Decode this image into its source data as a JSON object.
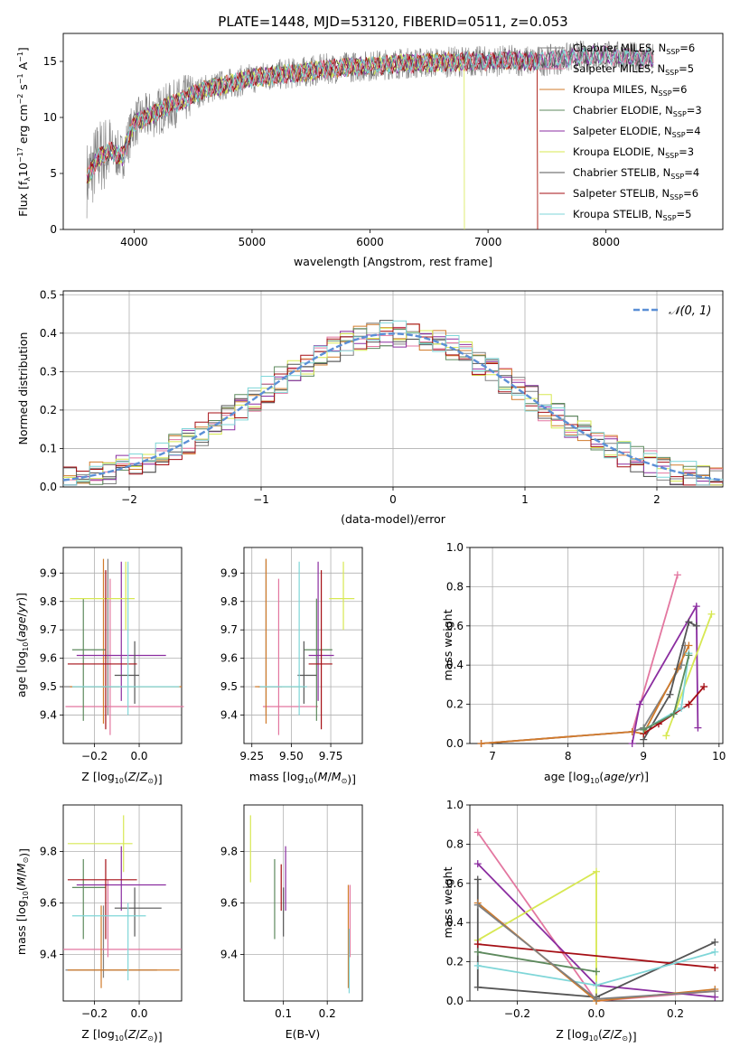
{
  "figure": {
    "title": "PLATE=1448, MJD=53120, FIBERID=0511, z=0.053"
  },
  "colors": {
    "chabrier_miles": "#808080",
    "salpeter_miles": "#e377a0",
    "kroupa_miles": "#d17b2b",
    "chabrier_elodie": "#5e8a5e",
    "salpeter_elodie": "#8b2ea0",
    "kroupa_elodie": "#d7e852",
    "chabrier_stelib": "#555555",
    "salpeter_stelib": "#a50f15",
    "kroupa_stelib": "#7fd6d8",
    "normal": "#5b8fd6"
  },
  "chart_data": [
    {
      "id": "spectrum",
      "type": "line",
      "xlabel": "wavelength [Angstrom, rest frame]",
      "ylabel": "Flux [f_λ 10^-17 erg cm^-2 s^-1 A^-1]",
      "xlim": [
        3400,
        8990
      ],
      "ylim": [
        0,
        17.5
      ],
      "xticks": [
        4000,
        5000,
        6000,
        7000,
        8000
      ],
      "yticks": [
        0,
        5,
        10,
        15
      ],
      "legend_position": "upper right",
      "legend": [
        {
          "label": "Chabrier MILES, N",
          "sub": "SSP",
          "eq": "=6",
          "key": "chabrier_miles"
        },
        {
          "label": "Salpeter MILES, N",
          "sub": "SSP",
          "eq": "=5",
          "key": "salpeter_miles"
        },
        {
          "label": "Kroupa MILES, N",
          "sub": "SSP",
          "eq": "=6",
          "key": "kroupa_miles"
        },
        {
          "label": "Chabrier ELODIE, N",
          "sub": "SSP",
          "eq": "=3",
          "key": "chabrier_elodie"
        },
        {
          "label": "Salpeter ELODIE, N",
          "sub": "SSP",
          "eq": "=4",
          "key": "salpeter_elodie"
        },
        {
          "label": "Kroupa ELODIE, N",
          "sub": "SSP",
          "eq": "=3",
          "key": "kroupa_elodie"
        },
        {
          "label": "Chabrier STELIB, N",
          "sub": "SSP",
          "eq": "=4",
          "key": "chabrier_stelib"
        },
        {
          "label": "Salpeter STELIB, N",
          "sub": "SSP",
          "eq": "=6",
          "key": "salpeter_stelib"
        },
        {
          "label": "Kroupa STELIB, N",
          "sub": "SSP",
          "eq": "=5",
          "key": "kroupa_stelib"
        }
      ],
      "continuum": [
        [
          3600,
          4.5
        ],
        [
          3700,
          6.5
        ],
        [
          3800,
          7.0
        ],
        [
          3900,
          6.5
        ],
        [
          4000,
          9.5
        ],
        [
          4200,
          10.5
        ],
        [
          4400,
          11.5
        ],
        [
          4600,
          12.5
        ],
        [
          4800,
          13.0
        ],
        [
          5000,
          13.5
        ],
        [
          5200,
          13.8
        ],
        [
          5400,
          14.0
        ],
        [
          5600,
          14.3
        ],
        [
          5800,
          14.5
        ],
        [
          6000,
          14.6
        ],
        [
          6200,
          14.8
        ],
        [
          6500,
          14.9
        ],
        [
          6800,
          15.0
        ],
        [
          7000,
          15.0
        ],
        [
          7200,
          15.1
        ],
        [
          7400,
          15.0
        ],
        [
          7600,
          15.2
        ],
        [
          7800,
          15.5
        ],
        [
          8000,
          15.5
        ],
        [
          8200,
          15.4
        ],
        [
          8400,
          15.2
        ]
      ],
      "model_ranges": {
        "kroupa_elodie": [
          3600,
          6800
        ],
        "salpeter_stelib": [
          3600,
          7420
        ],
        "kroupa_miles": [
          3600,
          7420
        ],
        "default": [
          3600,
          8400
        ]
      }
    },
    {
      "id": "residuals",
      "type": "step",
      "xlabel": "(data-model)/error",
      "ylabel": "Normed distribution",
      "xlim": [
        -2.5,
        2.5
      ],
      "ylim": [
        0,
        0.51
      ],
      "xticks": [
        -2,
        -1,
        0,
        1,
        2
      ],
      "yticks": [
        0.0,
        0.1,
        0.2,
        0.3,
        0.4,
        0.5
      ],
      "legend": [
        {
          "label": "N(0, 1)",
          "key": "normal"
        }
      ],
      "bin_width": 0.1,
      "bin_start": -2.5
    },
    {
      "id": "z_age",
      "type": "errorbar",
      "xlabel": "Z [log10(Z/Z⊙)]",
      "ylabel": "age  [log10(age/yr)]",
      "xlim": [
        -0.34,
        0.19
      ],
      "ylim": [
        9.3,
        9.99
      ],
      "xticks": [
        -0.2,
        0.0
      ],
      "yticks": [
        9.4,
        9.5,
        9.6,
        9.7,
        9.8,
        9.9
      ],
      "points": [
        {
          "key": "chabrier_miles",
          "x": -0.14,
          "y": 9.5,
          "xerr": [
            0.2,
            0.05
          ],
          "yerr": [
            0.1,
            0.45
          ]
        },
        {
          "key": "salpeter_miles",
          "x": -0.13,
          "y": 9.43,
          "xerr": [
            0.2,
            0.33
          ],
          "yerr": [
            0.1,
            0.45
          ]
        },
        {
          "key": "kroupa_miles",
          "x": -0.16,
          "y": 9.5,
          "xerr": [
            0.15,
            0.35
          ],
          "yerr": [
            0.13,
            0.45
          ]
        },
        {
          "key": "chabrier_elodie",
          "x": -0.25,
          "y": 9.63,
          "xerr": [
            0.05,
            0.1
          ],
          "yerr": [
            0.25,
            0.18
          ]
        },
        {
          "key": "salpeter_elodie",
          "x": -0.08,
          "y": 9.61,
          "xerr": [
            0.2,
            0.2
          ],
          "yerr": [
            0.16,
            0.33
          ]
        },
        {
          "key": "kroupa_elodie",
          "x": -0.06,
          "y": 9.81,
          "xerr": [
            0.25,
            0.04
          ],
          "yerr": [
            0.11,
            0.13
          ]
        },
        {
          "key": "chabrier_stelib",
          "x": -0.02,
          "y": 9.54,
          "xerr": [
            0.09,
            0.02
          ],
          "yerr": [
            0.1,
            0.12
          ]
        },
        {
          "key": "salpeter_stelib",
          "x": -0.15,
          "y": 9.58,
          "xerr": [
            0.17,
            0.14
          ],
          "yerr": [
            0.23,
            0.33
          ]
        },
        {
          "key": "kroupa_stelib",
          "x": -0.05,
          "y": 9.5,
          "xerr": [
            0.25,
            0.23
          ],
          "yerr": [
            0.1,
            0.44
          ]
        }
      ]
    },
    {
      "id": "mass_age",
      "type": "errorbar",
      "xlabel": "mass [log10(M/M⊙)]",
      "ylabel": "",
      "xlim": [
        9.2,
        9.95
      ],
      "ylim": [
        9.3,
        9.99
      ],
      "xticks": [
        9.25,
        9.5,
        9.75
      ],
      "yticks": [
        9.4,
        9.5,
        9.6,
        9.7,
        9.8,
        9.9
      ],
      "points": [
        {
          "key": "chabrier_miles",
          "x": 9.34,
          "y": 9.5,
          "xerr": [
            0.05,
            0.1
          ],
          "yerr": [
            0.1,
            0.45
          ]
        },
        {
          "key": "salpeter_miles",
          "x": 9.42,
          "y": 9.43,
          "xerr": [
            0.1,
            0.25
          ],
          "yerr": [
            0.1,
            0.45
          ]
        },
        {
          "key": "kroupa_miles",
          "x": 9.34,
          "y": 9.5,
          "xerr": [
            0.07,
            0.25
          ],
          "yerr": [
            0.13,
            0.45
          ]
        },
        {
          "key": "chabrier_elodie",
          "x": 9.66,
          "y": 9.63,
          "xerr": [
            0.08,
            0.1
          ],
          "yerr": [
            0.25,
            0.18
          ]
        },
        {
          "key": "salpeter_elodie",
          "x": 9.67,
          "y": 9.61,
          "xerr": [
            0.06,
            0.1
          ],
          "yerr": [
            0.16,
            0.33
          ]
        },
        {
          "key": "kroupa_elodie",
          "x": 9.83,
          "y": 9.81,
          "xerr": [
            0.09,
            0.07
          ],
          "yerr": [
            0.11,
            0.13
          ]
        },
        {
          "key": "chabrier_stelib",
          "x": 9.58,
          "y": 9.54,
          "xerr": [
            0.04,
            0.08
          ],
          "yerr": [
            0.1,
            0.12
          ]
        },
        {
          "key": "salpeter_stelib",
          "x": 9.69,
          "y": 9.58,
          "xerr": [
            0.08,
            0.07
          ],
          "yerr": [
            0.23,
            0.33
          ]
        },
        {
          "key": "kroupa_stelib",
          "x": 9.55,
          "y": 9.5,
          "xerr": [
            0.25,
            0.05
          ],
          "yerr": [
            0.1,
            0.44
          ]
        }
      ]
    },
    {
      "id": "age_weight",
      "type": "line",
      "xlabel": "age  [log10(age/yr)]",
      "ylabel": "mass weight",
      "xlim": [
        6.7,
        10.05
      ],
      "ylim": [
        0.0,
        1.0
      ],
      "xticks": [
        7,
        8,
        9,
        10
      ],
      "yticks": [
        0.0,
        0.2,
        0.4,
        0.6,
        0.8,
        1.0
      ],
      "series": [
        {
          "key": "salpeter_miles",
          "x": [
            6.85,
            8.85,
            9.45
          ],
          "y": [
            0.0,
            0.06,
            0.86
          ]
        },
        {
          "key": "chabrier_miles",
          "x": [
            6.85,
            8.85,
            9.0,
            9.5,
            9.55
          ],
          "y": [
            0.0,
            0.06,
            0.08,
            0.4,
            0.5
          ]
        },
        {
          "key": "kroupa_miles",
          "x": [
            6.85,
            8.85,
            9.0,
            9.45,
            9.6
          ],
          "y": [
            0.0,
            0.06,
            0.05,
            0.38,
            0.5
          ]
        },
        {
          "key": "salpeter_elodie",
          "x": [
            8.85,
            8.95,
            9.7,
            9.72
          ],
          "y": [
            0.0,
            0.2,
            0.7,
            0.08
          ]
        },
        {
          "key": "kroupa_elodie",
          "x": [
            9.3,
            9.9
          ],
          "y": [
            0.04,
            0.66
          ]
        },
        {
          "key": "chabrier_stelib",
          "x": [
            9.0,
            9.35,
            9.6,
            9.7
          ],
          "y": [
            0.02,
            0.25,
            0.62,
            0.6
          ]
        },
        {
          "key": "salpeter_stelib",
          "x": [
            9.0,
            9.2,
            9.6,
            9.8
          ],
          "y": [
            0.05,
            0.1,
            0.2,
            0.29
          ]
        },
        {
          "key": "kroupa_stelib",
          "x": [
            9.0,
            9.5,
            9.6
          ],
          "y": [
            0.07,
            0.18,
            0.46
          ]
        },
        {
          "key": "chabrier_elodie",
          "x": [
            9.0,
            9.4,
            9.6
          ],
          "y": [
            0.07,
            0.15,
            0.45
          ]
        }
      ]
    },
    {
      "id": "z_mass",
      "type": "errorbar",
      "xlabel": "Z [log10(Z/Z⊙)]",
      "ylabel": "mass [log10(M/M⊙)]",
      "xlim": [
        -0.34,
        0.19
      ],
      "ylim": [
        9.22,
        9.98
      ],
      "xticks": [
        -0.2,
        0.0
      ],
      "yticks": [
        9.4,
        9.6,
        9.8
      ],
      "points": [
        {
          "key": "chabrier_miles",
          "x": -0.16,
          "y": 9.34,
          "xerr": [
            0.17,
            0.24
          ],
          "yerr": [
            0.03,
            0.25
          ]
        },
        {
          "key": "salpeter_miles",
          "x": -0.14,
          "y": 9.42,
          "xerr": [
            0.2,
            0.33
          ],
          "yerr": [
            0.03,
            0.27
          ]
        },
        {
          "key": "kroupa_miles",
          "x": -0.17,
          "y": 9.34,
          "xerr": [
            0.15,
            0.35
          ],
          "yerr": [
            0.07,
            0.25
          ]
        },
        {
          "key": "chabrier_elodie",
          "x": -0.25,
          "y": 9.66,
          "xerr": [
            0.05,
            0.1
          ],
          "yerr": [
            0.2,
            0.11
          ]
        },
        {
          "key": "salpeter_elodie",
          "x": -0.08,
          "y": 9.67,
          "xerr": [
            0.2,
            0.2
          ],
          "yerr": [
            0.1,
            0.15
          ]
        },
        {
          "key": "kroupa_elodie",
          "x": -0.07,
          "y": 9.83,
          "xerr": [
            0.25,
            0.04
          ],
          "yerr": [
            0.11,
            0.11
          ]
        },
        {
          "key": "chabrier_stelib",
          "x": -0.02,
          "y": 9.58,
          "xerr": [
            0.09,
            0.12
          ],
          "yerr": [
            0.11,
            0.08
          ]
        },
        {
          "key": "salpeter_stelib",
          "x": -0.15,
          "y": 9.69,
          "xerr": [
            0.17,
            0.14
          ],
          "yerr": [
            0.23,
            0.08
          ]
        },
        {
          "key": "kroupa_stelib",
          "x": -0.05,
          "y": 9.55,
          "xerr": [
            0.25,
            0.08
          ],
          "yerr": [
            0.25,
            0.05
          ]
        }
      ]
    },
    {
      "id": "ebv_mass",
      "type": "errorbar",
      "xlabel": "E(B-V)",
      "ylabel": "",
      "xlim": [
        0.01,
        0.28
      ],
      "ylim": [
        9.22,
        9.98
      ],
      "xticks": [
        0.1,
        0.2
      ],
      "yticks": [
        9.4,
        9.6,
        9.8
      ],
      "points": [
        {
          "key": "kroupa_elodie",
          "x": 0.025,
          "y": 9.83,
          "xerr": [
            0,
            0
          ],
          "yerr": [
            0.15,
            0.11
          ]
        },
        {
          "key": "chabrier_elodie",
          "x": 0.08,
          "y": 9.66,
          "xerr": [
            0,
            0
          ],
          "yerr": [
            0.2,
            0.11
          ]
        },
        {
          "key": "salpeter_stelib",
          "x": 0.095,
          "y": 9.69,
          "xerr": [
            0,
            0
          ],
          "yerr": [
            0.12,
            0.06
          ]
        },
        {
          "key": "salpeter_elodie",
          "x": 0.105,
          "y": 9.67,
          "xerr": [
            0,
            0
          ],
          "yerr": [
            0.1,
            0.15
          ]
        },
        {
          "key": "chabrier_stelib",
          "x": 0.1,
          "y": 9.58,
          "xerr": [
            0,
            0
          ],
          "yerr": [
            0.11,
            0.08
          ]
        },
        {
          "key": "kroupa_miles",
          "x": 0.248,
          "y": 9.34,
          "xerr": [
            0,
            0
          ],
          "yerr": [
            0.07,
            0.33
          ]
        },
        {
          "key": "salpeter_miles",
          "x": 0.252,
          "y": 9.42,
          "xerr": [
            0,
            0
          ],
          "yerr": [
            0.03,
            0.25
          ]
        },
        {
          "key": "kroupa_stelib",
          "x": 0.25,
          "y": 9.4,
          "xerr": [
            0,
            0
          ],
          "yerr": [
            0.15,
            0.1
          ]
        }
      ]
    },
    {
      "id": "z_weight",
      "type": "line",
      "xlabel": "Z [log10(Z/Z⊙)]",
      "ylabel": "mass weight",
      "xlim": [
        -0.32,
        0.32
      ],
      "ylim": [
        0.0,
        1.0
      ],
      "xticks": [
        -0.2,
        0.0,
        0.2
      ],
      "yticks": [
        0.0,
        0.2,
        0.4,
        0.6,
        0.8,
        1.0
      ],
      "series": [
        {
          "key": "salpeter_miles",
          "x": [
            -0.3,
            0.0,
            0.3
          ],
          "y": [
            0.86,
            0.0,
            0.05
          ]
        },
        {
          "key": "salpeter_elodie",
          "x": [
            -0.3,
            0.0,
            0.3
          ],
          "y": [
            0.7,
            0.08,
            0.02
          ]
        },
        {
          "key": "kroupa_elodie",
          "x": [
            -0.3,
            0.0,
            0.0
          ],
          "y": [
            0.31,
            0.66,
            0.0
          ]
        },
        {
          "key": "chabrier_stelib",
          "x": [
            -0.3,
            -0.3,
            0.0,
            0.3
          ],
          "y": [
            0.62,
            0.07,
            0.02,
            0.3
          ]
        },
        {
          "key": "salpeter_stelib",
          "x": [
            -0.3,
            0.3
          ],
          "y": [
            0.29,
            0.17
          ]
        },
        {
          "key": "kroupa_stelib",
          "x": [
            -0.3,
            0.0,
            0.3
          ],
          "y": [
            0.18,
            0.08,
            0.25
          ]
        },
        {
          "key": "chabrier_elodie",
          "x": [
            -0.3,
            0.0
          ],
          "y": [
            0.25,
            0.15
          ]
        },
        {
          "key": "kroupa_miles",
          "x": [
            -0.3,
            0.0,
            0.3
          ],
          "y": [
            0.5,
            0.0,
            0.06
          ]
        },
        {
          "key": "chabrier_miles",
          "x": [
            -0.3,
            0.0,
            0.3
          ],
          "y": [
            0.49,
            0.01,
            0.05
          ]
        }
      ]
    }
  ]
}
